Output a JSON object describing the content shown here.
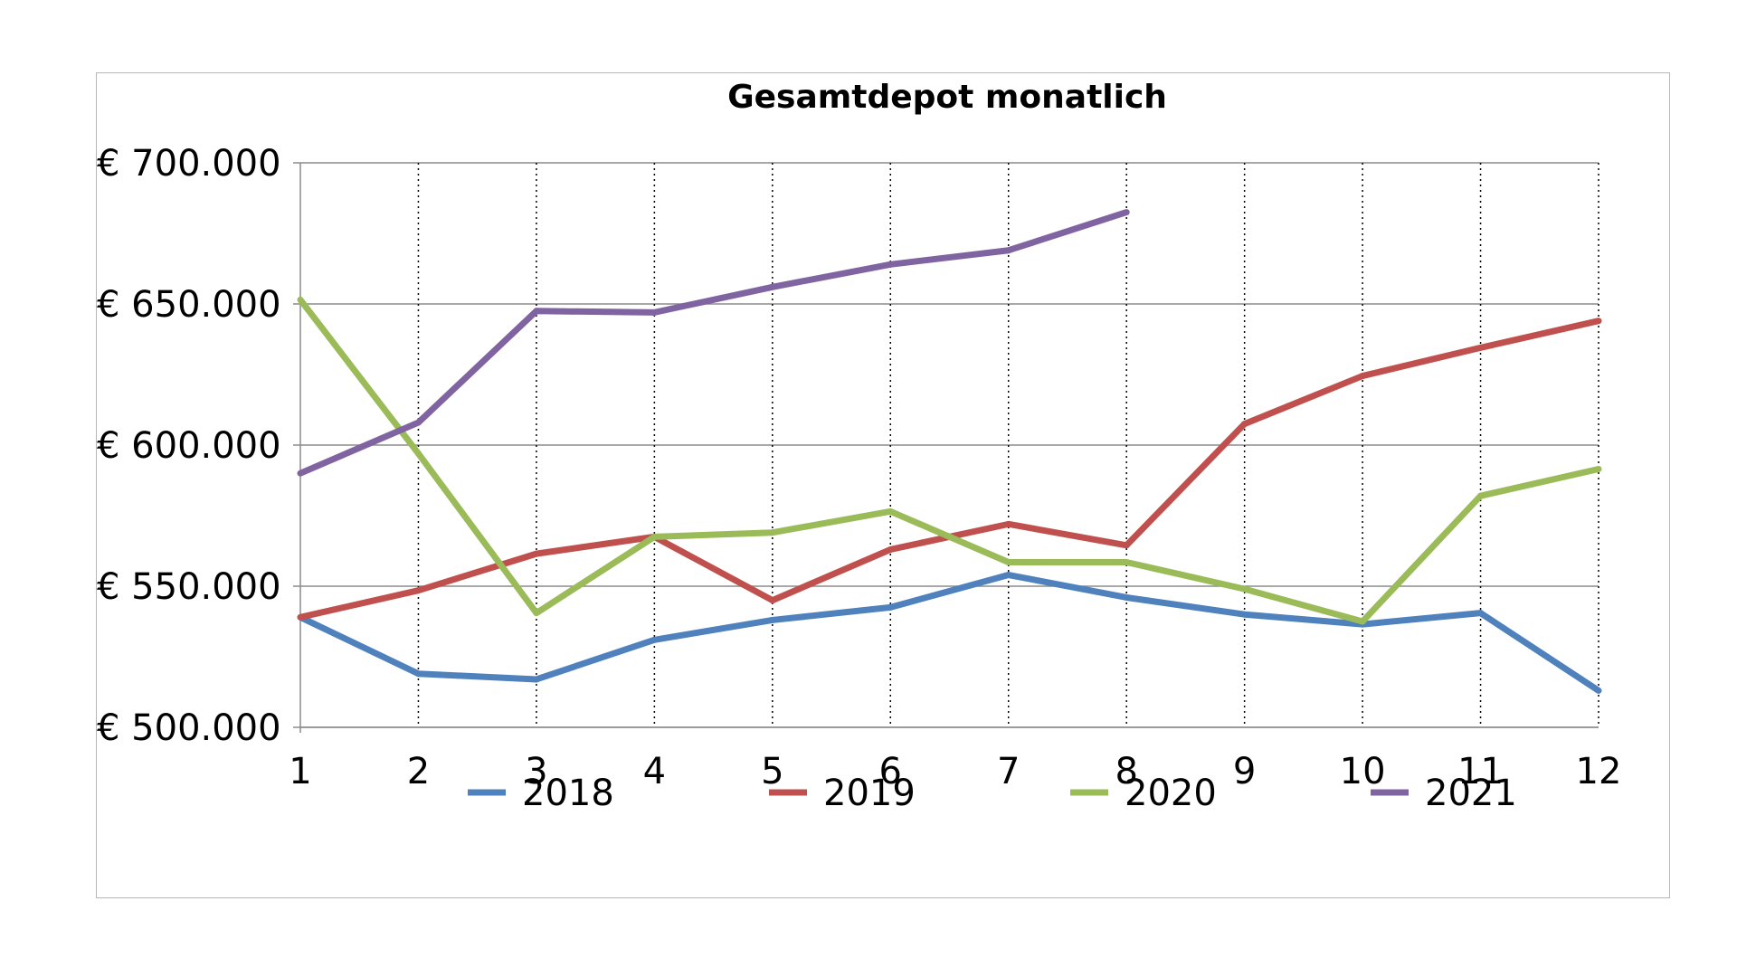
{
  "chart_data": {
    "type": "line",
    "title": "Gesamtdepot monatlich",
    "xlabel": "",
    "ylabel": "",
    "categories": [
      "1",
      "2",
      "3",
      "4",
      "5",
      "6",
      "7",
      "8",
      "9",
      "10",
      "11",
      "12"
    ],
    "ylim": [
      500000,
      700000
    ],
    "y_ticks": [
      {
        "value": 700000,
        "label": "€ 700.000"
      },
      {
        "value": 650000,
        "label": "€ 650.000"
      },
      {
        "value": 600000,
        "label": "€ 600.000"
      },
      {
        "value": 550000,
        "label": "€ 550.000"
      },
      {
        "value": 500000,
        "label": "€ 500.000"
      }
    ],
    "grid": "horizontal solid, vertical dotted",
    "legend_position": "bottom",
    "series": [
      {
        "name": "2018",
        "color": "#4f81bd",
        "values": [
          539000,
          519000,
          517000,
          531000,
          538000,
          542500,
          554000,
          546000,
          540000,
          536500,
          540500,
          513000
        ]
      },
      {
        "name": "2019",
        "color": "#c0504d",
        "values": [
          539000,
          548500,
          561500,
          567500,
          545000,
          563000,
          572000,
          564500,
          607500,
          624500,
          634500,
          644000
        ]
      },
      {
        "name": "2020",
        "color": "#9bbb59",
        "values": [
          651500,
          597000,
          540500,
          567500,
          569000,
          576500,
          558500,
          558500,
          549000,
          537500,
          582000,
          591500
        ]
      },
      {
        "name": "2021",
        "color": "#8064a2",
        "values": [
          590000,
          608000,
          647500,
          647000,
          656000,
          664000,
          669000,
          682500,
          null,
          null,
          null,
          null
        ]
      }
    ]
  }
}
